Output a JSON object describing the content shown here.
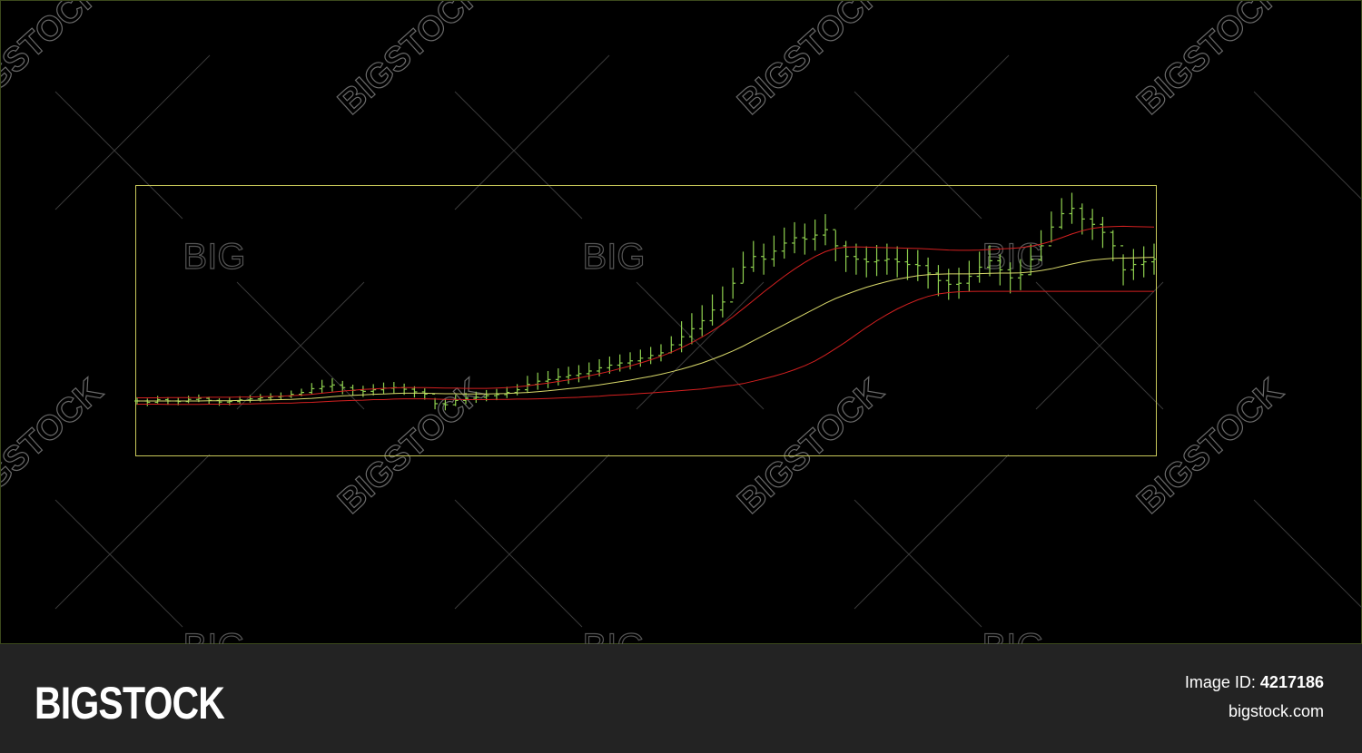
{
  "colors": {
    "background": "#000000",
    "frame": "#c8c85a",
    "candles": "#8fd14f",
    "band": "#d42020",
    "middle_line": "#d8d86a",
    "footer": "#232323",
    "watermark": "#6a6a6a"
  },
  "watermark": {
    "big_text": "BIGSTOCK",
    "small_text": "BIG"
  },
  "footer": {
    "brand": "BIGSTOCK",
    "image_id_label": "Image ID:",
    "image_id": "4217186",
    "site": "bigstock.com"
  },
  "chart_data": {
    "type": "line",
    "title": "",
    "xlabel": "",
    "ylabel": "",
    "grid": false,
    "legend": "none",
    "note_candles": "price bars (high-low with small open/close ticks), rising series",
    "xlim": [
      0,
      100
    ],
    "ylim": [
      0,
      100
    ],
    "price_close": [
      20,
      19.5,
      20.5,
      20,
      19.8,
      20.6,
      21,
      20.2,
      19.6,
      19.8,
      20.4,
      20.8,
      21.2,
      21.5,
      21.8,
      22.5,
      23.2,
      24.6,
      25.4,
      26,
      25,
      24,
      23.6,
      24.2,
      24.8,
      25,
      24.4,
      23.4,
      22.6,
      19,
      18.6,
      20.2,
      21,
      21.4,
      22,
      22.4,
      23.2,
      24.2,
      26.2,
      27.4,
      28,
      29,
      29.6,
      30.2,
      31.2,
      32.4,
      33.4,
      34.2,
      35,
      36,
      37,
      38,
      41,
      44,
      47,
      50,
      54,
      57,
      64,
      70,
      74,
      73,
      76,
      79,
      81,
      80.5,
      82,
      84,
      78,
      74,
      73,
      72,
      72.5,
      73,
      72,
      71,
      70.6,
      67.8,
      65,
      63.6,
      64,
      66.6,
      70,
      72.4,
      69,
      66,
      67.2,
      72.8,
      78,
      85,
      90,
      92,
      88,
      86,
      83,
      78,
      69,
      71,
      72,
      73
    ],
    "price_high": [
      21.4,
      20.9,
      21.9,
      21.4,
      21.2,
      22,
      22.4,
      21.6,
      21,
      21.2,
      21.8,
      22.2,
      22.6,
      22.9,
      23.2,
      23.9,
      24.6,
      26.7,
      27.9,
      28.5,
      27.5,
      26.1,
      25.7,
      26.3,
      26.9,
      27.1,
      26.5,
      25.5,
      24.7,
      21.1,
      20.7,
      22.3,
      23.1,
      23.5,
      24.1,
      24.5,
      25.3,
      26.3,
      29.4,
      30.6,
      31.2,
      32.2,
      32.8,
      33.4,
      34.4,
      35.6,
      36.6,
      37.4,
      38.2,
      39.2,
      40.2,
      41.2,
      44.2,
      49.8,
      52.8,
      55.8,
      59.8,
      62.8,
      69.8,
      75.8,
      79.8,
      78.8,
      81.8,
      84.8,
      86.8,
      86.3,
      87.8,
      89.8,
      83.8,
      79.8,
      78.8,
      77.8,
      78.3,
      78.8,
      77.8,
      76.8,
      76.4,
      73.6,
      70.8,
      69.4,
      69.8,
      72.4,
      75.8,
      78.2,
      74.8,
      71.8,
      73,
      78.6,
      83.8,
      90.8,
      95.8,
      97.8,
      93.8,
      91.8,
      88.8,
      83.8,
      74.8,
      76.8,
      77.8,
      78.8
    ],
    "price_low": [
      18.6,
      18.1,
      19.1,
      18.6,
      18.4,
      19.2,
      19.6,
      18.8,
      18.2,
      18.4,
      19,
      19.4,
      19.8,
      20.1,
      20.4,
      21.1,
      21.8,
      22.5,
      22.9,
      23.5,
      22.5,
      21.9,
      21.5,
      22.1,
      22.7,
      22.9,
      22.3,
      21.3,
      20.5,
      16.9,
      16.5,
      18.1,
      18.9,
      19.3,
      19.9,
      20.3,
      21.1,
      22.1,
      23,
      24.2,
      24.8,
      25.8,
      26.4,
      27,
      28,
      29.2,
      30.2,
      31,
      31.8,
      32.8,
      33.8,
      34.8,
      37.8,
      38.2,
      41.2,
      44.2,
      48.2,
      51.2,
      58.2,
      64.2,
      68.2,
      67.2,
      70.2,
      73.2,
      75.2,
      74.7,
      76.2,
      78.2,
      72.2,
      68.2,
      67.2,
      66.2,
      66.7,
      67.2,
      66.2,
      65.2,
      64.8,
      62,
      59.2,
      57.8,
      58.2,
      60.8,
      64.2,
      66.6,
      63.2,
      60.2,
      61.4,
      67,
      72.2,
      79.2,
      84.2,
      86.2,
      82.2,
      80.2,
      77.2,
      72.2,
      63.2,
      65.2,
      66.2,
      67.2
    ],
    "series": [
      {
        "values": [
          20,
          20,
          20,
          20,
          20,
          20,
          20,
          20.1,
          20.1,
          20.1,
          20.2,
          20.2,
          20.3,
          20.4,
          20.5,
          20.6,
          20.8,
          21,
          21.3,
          21.6,
          21.9,
          22.1,
          22.3,
          22.5,
          22.6,
          22.8,
          22.9,
          22.9,
          22.9,
          22.8,
          22.7,
          22.7,
          22.6,
          22.6,
          22.6,
          22.7,
          22.8,
          23,
          23.2,
          23.5,
          23.8,
          24.2,
          24.6,
          25,
          25.5,
          26,
          26.6,
          27.2,
          27.8,
          28.5,
          29.2,
          30,
          30.9,
          31.9,
          33,
          34.2,
          35.6,
          37.1,
          38.7,
          40.5,
          42.5,
          44.5,
          46.5,
          48.5,
          50.5,
          52.5,
          54.5,
          56.5,
          58.3,
          59.8,
          61.2,
          62.5,
          63.6,
          64.6,
          65.5,
          66.2,
          66.8,
          67.2,
          67.4,
          67.5,
          67.5,
          67.5,
          67.6,
          67.7,
          67.8,
          67.8,
          67.9,
          68.2,
          68.7,
          69.4,
          70.3,
          71.2,
          72,
          72.6,
          73,
          73.3,
          73.4,
          73.5,
          73.6,
          73.7
        ]
      },
      {
        "values": [
          21.2,
          21.2,
          21.2,
          21.3,
          21.3,
          21.3,
          21.3,
          21.4,
          21.4,
          21.4,
          21.5,
          21.5,
          21.6,
          21.7,
          21.8,
          22,
          22.2,
          22.5,
          22.9,
          23.3,
          23.7,
          24,
          24.3,
          24.5,
          24.7,
          24.9,
          25,
          25,
          25,
          24.9,
          24.8,
          24.8,
          24.7,
          24.7,
          24.7,
          24.8,
          25,
          25.3,
          25.7,
          26.2,
          26.7,
          27.3,
          27.9,
          28.6,
          29.4,
          30.2,
          31.1,
          32.1,
          33.1,
          34.2,
          35.4,
          36.7,
          38.2,
          39.9,
          41.8,
          43.9,
          46.2,
          48.7,
          51.5,
          54.5,
          57.6,
          60.7,
          63.7,
          66.6,
          69.3,
          71.8,
          74,
          75.8,
          77,
          77.5,
          77.6,
          77.5,
          77.4,
          77.3,
          77.2,
          77.1,
          77,
          76.8,
          76.6,
          76.4,
          76.3,
          76.3,
          76.4,
          76.6,
          76.8,
          77,
          77.3,
          77.8,
          78.6,
          79.7,
          81,
          82.4,
          83.6,
          84.5,
          85,
          85.2,
          85.3,
          85.2,
          85.1,
          85
        ]
      },
      {
        "values": [
          18.8,
          18.8,
          18.8,
          18.7,
          18.7,
          18.7,
          18.7,
          18.8,
          18.8,
          18.8,
          18.9,
          18.9,
          19,
          19.1,
          19.2,
          19.2,
          19.4,
          19.5,
          19.7,
          19.9,
          20.1,
          20.2,
          20.3,
          20.5,
          20.5,
          20.7,
          20.8,
          20.8,
          20.8,
          20.7,
          20.6,
          20.6,
          20.5,
          20.5,
          20.5,
          20.6,
          20.6,
          20.7,
          20.7,
          20.8,
          20.9,
          21.1,
          21.3,
          21.4,
          21.6,
          21.8,
          22.1,
          22.3,
          22.5,
          22.8,
          23,
          23.3,
          23.6,
          23.9,
          24.2,
          24.5,
          25,
          25.5,
          25.9,
          26.5,
          27.4,
          28.3,
          29.3,
          30.4,
          31.7,
          33.2,
          35,
          37.2,
          39.6,
          42.1,
          44.8,
          47.5,
          50,
          52.3,
          54.4,
          56.2,
          57.8,
          59.1,
          60,
          60.5,
          60.8,
          60.9,
          61,
          61,
          61,
          61,
          61,
          61,
          61,
          61,
          61,
          61,
          61,
          61,
          61,
          61,
          61,
          61,
          61,
          61
        ]
      }
    ]
  }
}
